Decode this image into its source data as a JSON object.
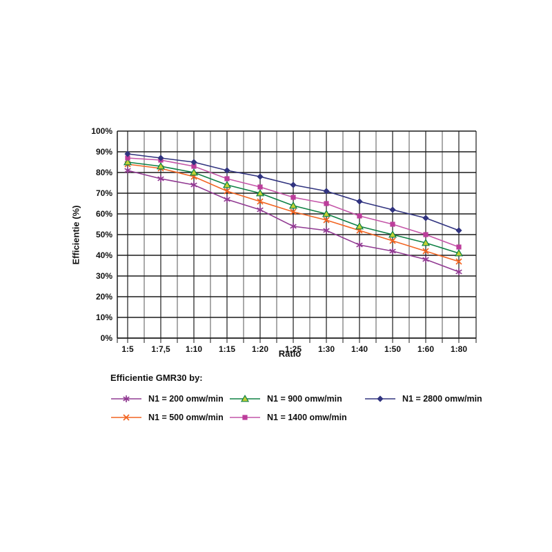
{
  "chart_data": {
    "type": "line",
    "xlabel": "Ratio",
    "ylabel": "Efficientie (%)",
    "legend_title": "Efficientie GMR30 by:",
    "categories": [
      "1:5",
      "1:7,5",
      "1:10",
      "1:15",
      "1:20",
      "1:25",
      "1:30",
      "1:40",
      "1:50",
      "1:60",
      "1:80"
    ],
    "y_ticks": [
      "0%",
      "10%",
      "20%",
      "30%",
      "40%",
      "50%",
      "60%",
      "70%",
      "80%",
      "90%",
      "100%"
    ],
    "ylim": [
      0,
      100
    ],
    "grid": true,
    "legend_position": "bottom",
    "series": [
      {
        "name": "N1 = 200 omw/min",
        "marker": "asterisk",
        "color": "#913A92",
        "marker_fill": "#913A92",
        "values": [
          81,
          77,
          74,
          67,
          62,
          54,
          52,
          45,
          42,
          38,
          32
        ]
      },
      {
        "name": "N1 = 500 omw/min",
        "marker": "x",
        "color": "#F26522",
        "marker_fill": "#F26522",
        "values": [
          84,
          82,
          78,
          71,
          66,
          61,
          57,
          52,
          47,
          42,
          37
        ]
      },
      {
        "name": "N1 = 900 omw/min",
        "marker": "triangle",
        "color": "#0E8044",
        "marker_fill": "#C2CF33",
        "values": [
          85,
          83,
          80,
          74,
          70,
          64,
          60,
          54,
          50,
          46,
          41
        ]
      },
      {
        "name": "N1 = 1400 omw/min",
        "marker": "square",
        "color": "#C455A8",
        "marker_fill": "#BC3D9B",
        "values": [
          87,
          86,
          83,
          77,
          73,
          68,
          65,
          59,
          55,
          50,
          44
        ]
      },
      {
        "name": "N1 = 2800 omw/min",
        "marker": "diamond",
        "color": "#30337F",
        "marker_fill": "#30337F",
        "values": [
          89,
          87,
          85,
          81,
          78,
          74,
          71,
          66,
          62,
          58,
          52
        ]
      }
    ]
  }
}
